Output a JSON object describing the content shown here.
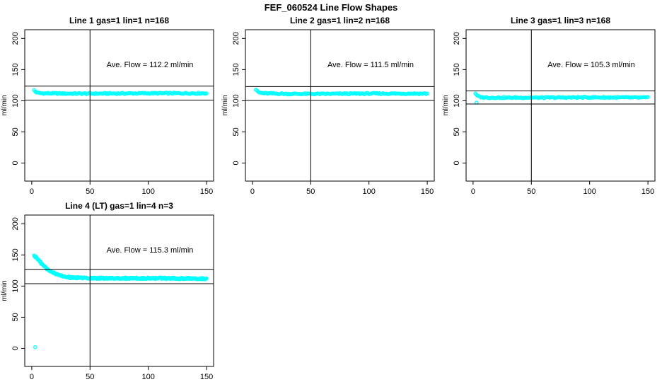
{
  "figure": {
    "title": "FEF_060524  Line Flow Shapes",
    "background": "#ffffff",
    "axis_color": "#000000",
    "marker_color": "#00ffff"
  },
  "chart_data": [
    {
      "type": "scatter",
      "title": "Line 1 gas=1 lin=1 n=168",
      "annotation": "Ave. Flow =  112.2  ml/min",
      "ave_flow_ml_min": 112.2,
      "ylabel": "ml/min",
      "xlabel": "",
      "xlim": [
        -6,
        156
      ],
      "ylim": [
        -29,
        214
      ],
      "xticks": [
        0,
        50,
        100,
        150
      ],
      "yticks": [
        0,
        50,
        100,
        150,
        200
      ],
      "vline_x": 50,
      "ref_lines": [
        123.4,
        101.0
      ],
      "grid": false,
      "legend": false,
      "series": {
        "name": "line-1-flow",
        "x_start": 2,
        "x_end": 150,
        "anchors": [
          [
            2,
            117
          ],
          [
            3,
            115
          ],
          [
            4,
            113.5
          ],
          [
            6,
            112.5
          ],
          [
            10,
            112
          ],
          [
            30,
            111.5
          ],
          [
            60,
            111.5
          ],
          [
            100,
            112
          ],
          [
            150,
            112
          ]
        ]
      },
      "outliers": [],
      "step": 1,
      "jitter": 2,
      "seed": 1
    },
    {
      "type": "scatter",
      "title": "Line 2 gas=1 lin=2 n=168",
      "annotation": "Ave. Flow =  111.5  ml/min",
      "ave_flow_ml_min": 111.5,
      "ylabel": "ml/min",
      "xlabel": "",
      "xlim": [
        -6,
        156
      ],
      "ylim": [
        -29,
        214
      ],
      "xticks": [
        0,
        50,
        100,
        150
      ],
      "yticks": [
        0,
        50,
        100,
        150,
        200
      ],
      "vline_x": 50,
      "ref_lines": [
        122.7,
        100.4
      ],
      "grid": false,
      "legend": false,
      "series": {
        "name": "line-2-flow",
        "x_start": 3,
        "x_end": 150,
        "anchors": [
          [
            3,
            118
          ],
          [
            4,
            115.5
          ],
          [
            6,
            113
          ],
          [
            10,
            112
          ],
          [
            30,
            111
          ],
          [
            60,
            111
          ],
          [
            100,
            111.5
          ],
          [
            150,
            111.5
          ]
        ]
      },
      "outliers": [],
      "step": 1,
      "jitter": 2,
      "seed": 2
    },
    {
      "type": "scatter",
      "title": "Line 3 gas=1 lin=3 n=168",
      "annotation": "Ave. Flow =  105.3  ml/min",
      "ave_flow_ml_min": 105.3,
      "ylabel": "ml/min",
      "xlabel": "",
      "xlim": [
        -6,
        156
      ],
      "ylim": [
        -29,
        214
      ],
      "xticks": [
        0,
        50,
        100,
        150
      ],
      "yticks": [
        0,
        50,
        100,
        150,
        200
      ],
      "vline_x": 50,
      "ref_lines": [
        115.8,
        94.8
      ],
      "grid": false,
      "legend": false,
      "series": {
        "name": "line-3-flow",
        "x_start": 2,
        "x_end": 150,
        "anchors": [
          [
            2,
            112
          ],
          [
            3,
            109
          ],
          [
            5,
            106.5
          ],
          [
            8,
            105.5
          ],
          [
            15,
            105
          ],
          [
            60,
            105
          ],
          [
            100,
            105.5
          ],
          [
            150,
            105
          ]
        ]
      },
      "outliers": [
        [
          3,
          97
        ]
      ],
      "step": 1,
      "jitter": 2,
      "seed": 3
    },
    {
      "type": "scatter",
      "title": "Line 4 (LT) gas=1 lin=4 n=3",
      "annotation": "Ave. Flow =  115.3  ml/min",
      "ave_flow_ml_min": 115.3,
      "ylabel": "ml/min",
      "xlabel": "",
      "xlim": [
        -6,
        156
      ],
      "ylim": [
        -29,
        214
      ],
      "xticks": [
        0,
        50,
        100,
        150
      ],
      "yticks": [
        0,
        50,
        100,
        150,
        200
      ],
      "vline_x": 50,
      "ref_lines": [
        126.8,
        103.8
      ],
      "grid": false,
      "legend": false,
      "series": {
        "name": "line-4-flow",
        "x_start": 2,
        "x_end": 150,
        "anchors": [
          [
            2,
            149
          ],
          [
            4,
            146
          ],
          [
            6,
            141
          ],
          [
            8,
            137
          ],
          [
            10,
            133
          ],
          [
            13,
            128
          ],
          [
            16,
            124
          ],
          [
            20,
            120
          ],
          [
            24,
            117
          ],
          [
            28,
            115
          ],
          [
            34,
            113.8
          ],
          [
            45,
            113
          ],
          [
            70,
            112.5
          ],
          [
            110,
            112.5
          ],
          [
            150,
            112
          ]
        ]
      },
      "outliers": [
        [
          3,
          2
        ]
      ],
      "step": 0.5,
      "jitter": 2.5,
      "seed": 4
    }
  ]
}
